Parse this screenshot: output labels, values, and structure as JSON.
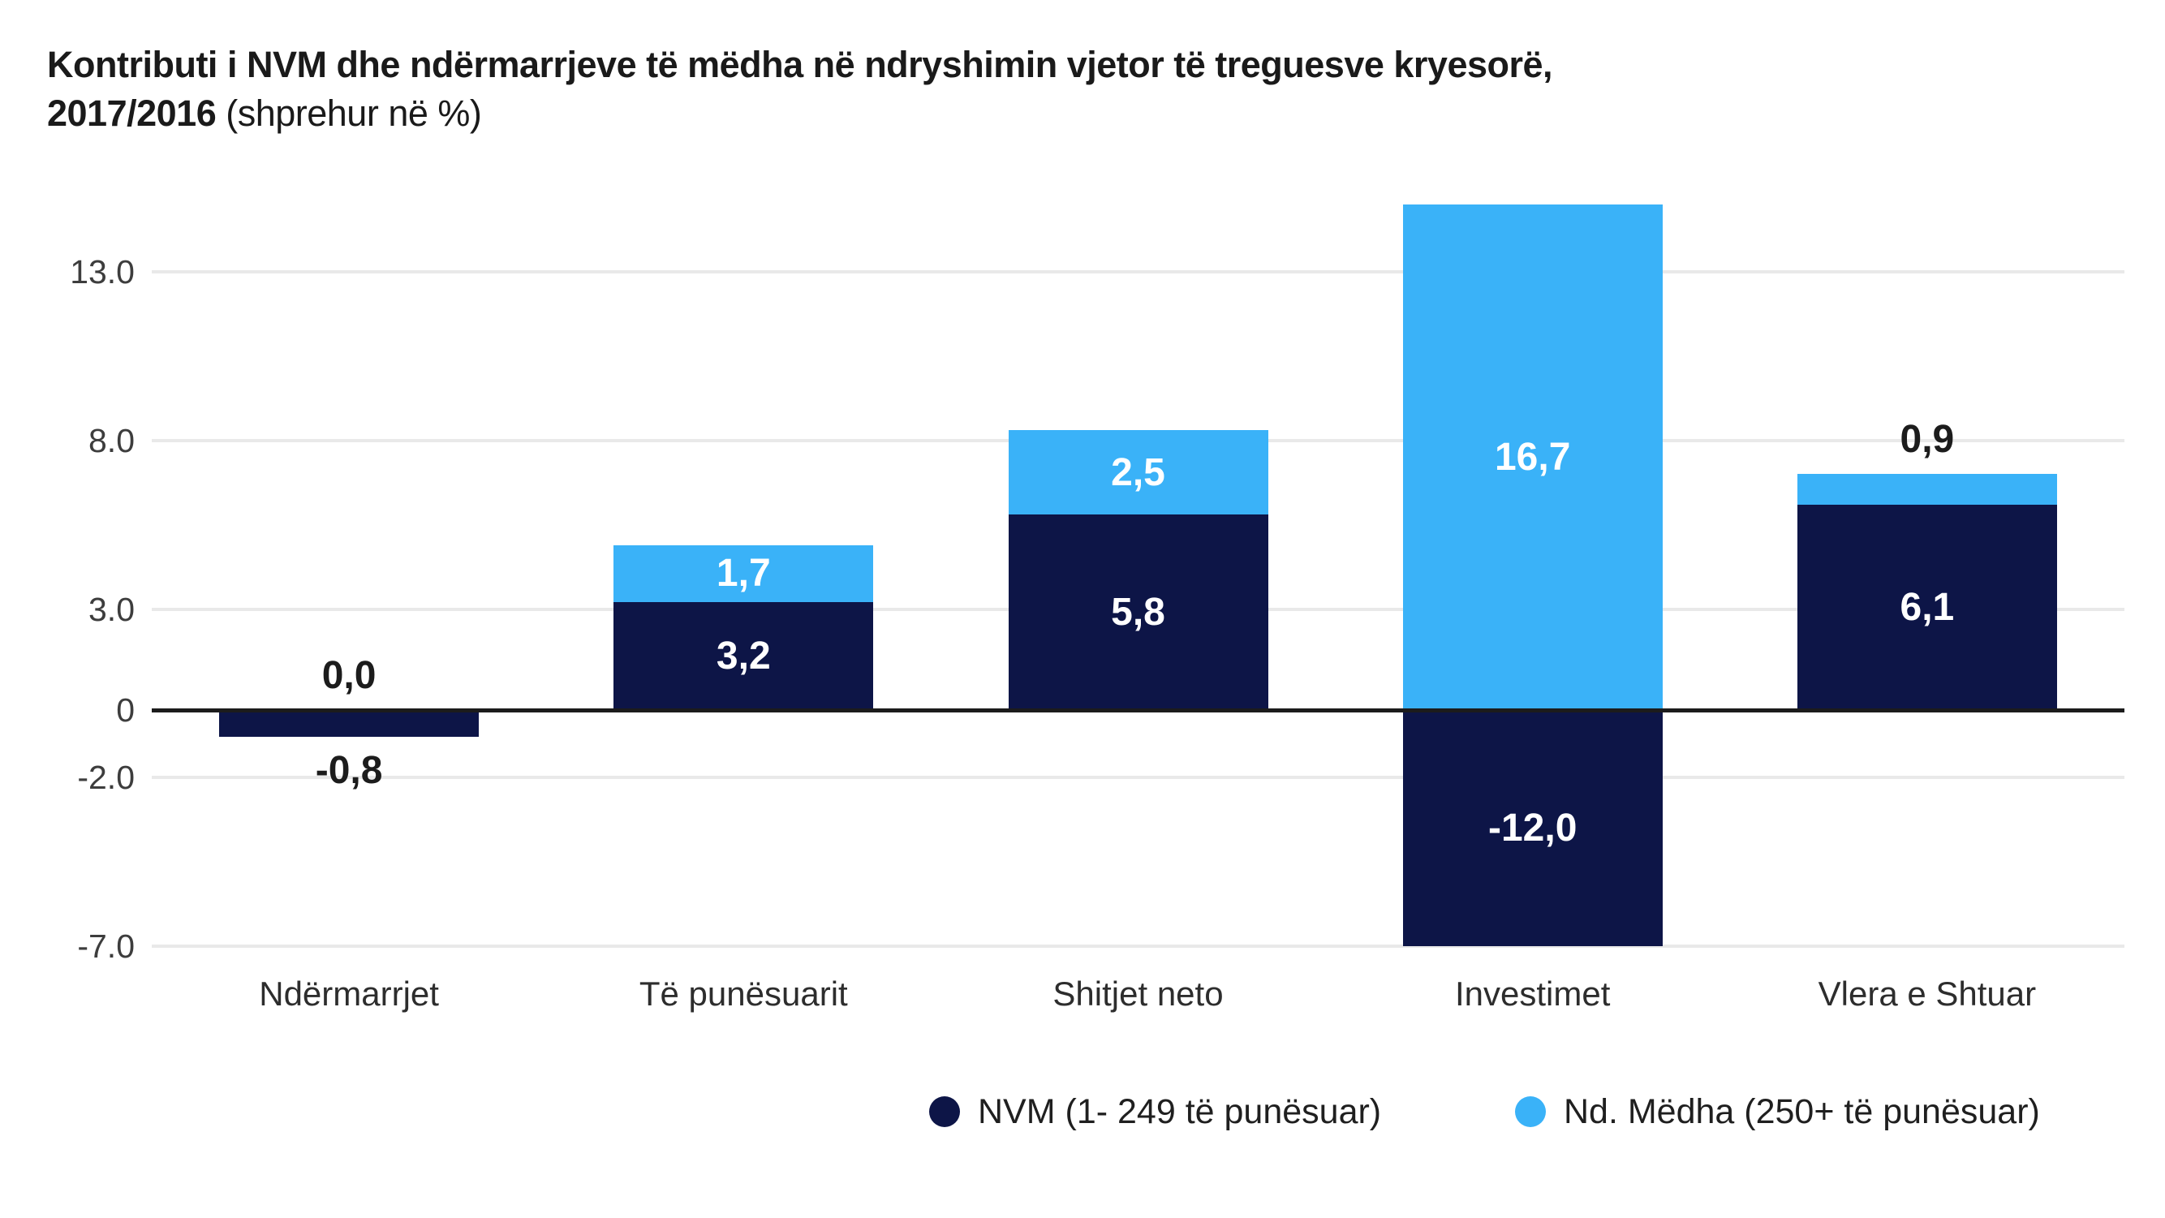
{
  "title": {
    "line1": "Kontributi i NVM dhe ndërmarrjeve të mëdha në ndryshimin vjetor të treguesve kryesorë,",
    "line2_bold": "2017/2016",
    "line2_rest": " (shprehur në %)"
  },
  "colors": {
    "nvm": "#0d1547",
    "medha": "#3ab2f8",
    "grid": "#e9e9e9",
    "zero_axis": "#1c1c1c"
  },
  "chart_data": {
    "type": "bar",
    "stacked": true,
    "title": "Kontributi i NVM dhe ndërmarrjeve të mëdha në ndryshimin vjetor të treguesve kryesorë, 2017/2016 (shprehur në %)",
    "categories": [
      "Ndërmarrjet",
      "Të  punësuarit",
      "Shitjet neto",
      "Investimet",
      "Vlera e Shtuar"
    ],
    "series": [
      {
        "name": "NVM (1- 249 të punësuar)",
        "color_key": "nvm",
        "values": [
          -0.8,
          3.2,
          5.8,
          -12.0,
          6.1
        ],
        "labels": [
          "-0,8",
          "3,2",
          "5,8",
          "-12,0",
          "6,1"
        ]
      },
      {
        "name": "Nd. Mëdha (250+ të punësuar)",
        "color_key": "medha",
        "values": [
          0.0,
          1.7,
          2.5,
          16.7,
          0.9
        ],
        "labels": [
          "0,0",
          "1,7",
          "2,5",
          "16,7",
          "0,9"
        ]
      }
    ],
    "y_ticks": [
      {
        "label": "13.0",
        "value": 13
      },
      {
        "label": "8.0",
        "value": 8
      },
      {
        "label": "3.0",
        "value": 3
      },
      {
        "label": "0",
        "value": 0
      },
      {
        "label": "-2.0",
        "value": -2
      },
      {
        "label": "-7.0",
        "value": -7
      }
    ],
    "ylim": [
      -7,
      15
    ],
    "grid": true,
    "legend_position": "bottom-right",
    "xlabel": "",
    "ylabel": ""
  }
}
